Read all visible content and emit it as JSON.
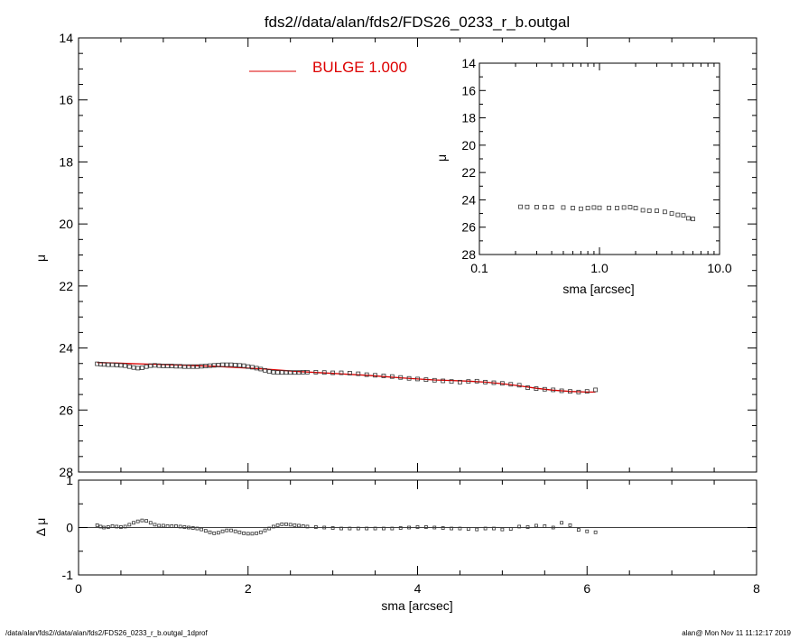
{
  "header": {
    "title": "fds2//data/alan/fds2/FDS26_0233_r_b.outgal"
  },
  "footer": {
    "left": "/data/alan/fds2//data/alan/fds2/FDS26_0233_r_b.outgal_1dprof",
    "right": "alan@  Mon Nov 11 11:12:17 2019"
  },
  "chart_data": [
    {
      "type": "scatter",
      "name": "main-profile",
      "xlabel": "",
      "ylabel": "μ",
      "xlim": [
        0,
        8
      ],
      "ylim": [
        28,
        14
      ],
      "y_inverted": true,
      "x_ticks": [
        0,
        2,
        4,
        6,
        8
      ],
      "y_ticks": [
        14,
        16,
        18,
        20,
        22,
        24,
        26,
        28
      ],
      "legend": {
        "label": "BULGE  1.000",
        "color": "#dd0000",
        "placement": "top"
      },
      "series": [
        {
          "kind": "data",
          "x": [
            0.22,
            0.26,
            0.3,
            0.35,
            0.4,
            0.45,
            0.5,
            0.55,
            0.6,
            0.65,
            0.7,
            0.75,
            0.8,
            0.85,
            0.9,
            0.95,
            1.0,
            1.05,
            1.1,
            1.15,
            1.2,
            1.25,
            1.3,
            1.35,
            1.4,
            1.45,
            1.5,
            1.55,
            1.6,
            1.65,
            1.7,
            1.75,
            1.8,
            1.85,
            1.9,
            1.95,
            2.0,
            2.05,
            2.1,
            2.15,
            2.2,
            2.25,
            2.3,
            2.35,
            2.4,
            2.45,
            2.5,
            2.55,
            2.6,
            2.65,
            2.7,
            2.8,
            2.9,
            3.0,
            3.1,
            3.2,
            3.3,
            3.4,
            3.5,
            3.6,
            3.7,
            3.8,
            3.9,
            4.0,
            4.1,
            4.2,
            4.3,
            4.4,
            4.5,
            4.6,
            4.7,
            4.8,
            4.9,
            5.0,
            5.1,
            5.2,
            5.3,
            5.4,
            5.5,
            5.6,
            5.7,
            5.8,
            5.9,
            6.0,
            6.1
          ],
          "y": [
            24.51,
            24.52,
            24.53,
            24.54,
            24.54,
            24.55,
            24.56,
            24.57,
            24.6,
            24.63,
            24.65,
            24.64,
            24.6,
            24.57,
            24.56,
            24.57,
            24.58,
            24.58,
            24.58,
            24.59,
            24.59,
            24.6,
            24.6,
            24.6,
            24.6,
            24.59,
            24.58,
            24.57,
            24.56,
            24.55,
            24.54,
            24.54,
            24.54,
            24.55,
            24.56,
            24.57,
            24.6,
            24.62,
            24.65,
            24.68,
            24.72,
            24.76,
            24.78,
            24.79,
            24.79,
            24.79,
            24.79,
            24.79,
            24.79,
            24.78,
            24.78,
            24.78,
            24.79,
            24.8,
            24.8,
            24.81,
            24.83,
            24.86,
            24.88,
            24.9,
            24.92,
            24.95,
            24.98,
            25.0,
            25.02,
            25.04,
            25.06,
            25.08,
            25.1,
            25.08,
            25.07,
            25.1,
            25.12,
            25.14,
            25.17,
            25.2,
            25.28,
            25.31,
            25.33,
            25.35,
            25.38,
            25.4,
            25.42,
            25.4,
            25.35
          ]
        },
        {
          "kind": "model",
          "name": "BULGE  1.000",
          "color": "#dd0000",
          "x": [
            0.22,
            0.4,
            0.6,
            0.8,
            1.0,
            1.2,
            1.4,
            1.6,
            1.8,
            2.0,
            2.2,
            2.4,
            2.6,
            2.8,
            3.0,
            3.2,
            3.4,
            3.6,
            3.8,
            4.0,
            4.2,
            4.4,
            4.6,
            4.8,
            5.0,
            5.2,
            5.4,
            5.6,
            5.8,
            6.0,
            6.1
          ],
          "y": [
            24.47,
            24.48,
            24.5,
            24.52,
            24.53,
            24.55,
            24.57,
            24.59,
            24.62,
            24.65,
            24.68,
            24.72,
            24.76,
            24.79,
            24.82,
            24.85,
            24.88,
            24.92,
            24.96,
            25.0,
            25.03,
            25.05,
            25.07,
            25.1,
            25.15,
            25.22,
            25.3,
            25.36,
            25.4,
            25.42,
            25.42
          ]
        }
      ]
    },
    {
      "type": "scatter",
      "name": "residual",
      "xlabel": "sma [arcsec]",
      "ylabel": "Δ μ",
      "xlim": [
        0,
        8
      ],
      "ylim": [
        -1,
        1
      ],
      "x_ticks": [
        0,
        2,
        4,
        6,
        8
      ],
      "y_ticks": [
        -1,
        0,
        1
      ],
      "zero_line": true,
      "series": [
        {
          "kind": "residual",
          "x": [
            0.22,
            0.26,
            0.3,
            0.35,
            0.4,
            0.45,
            0.5,
            0.55,
            0.6,
            0.65,
            0.7,
            0.75,
            0.8,
            0.85,
            0.9,
            0.95,
            1.0,
            1.05,
            1.1,
            1.15,
            1.2,
            1.25,
            1.3,
            1.35,
            1.4,
            1.45,
            1.5,
            1.55,
            1.6,
            1.65,
            1.7,
            1.75,
            1.8,
            1.85,
            1.9,
            1.95,
            2.0,
            2.05,
            2.1,
            2.15,
            2.2,
            2.25,
            2.3,
            2.35,
            2.4,
            2.45,
            2.5,
            2.55,
            2.6,
            2.65,
            2.7,
            2.8,
            2.9,
            3.0,
            3.1,
            3.2,
            3.3,
            3.4,
            3.5,
            3.6,
            3.7,
            3.8,
            3.9,
            4.0,
            4.1,
            4.2,
            4.3,
            4.4,
            4.5,
            4.6,
            4.7,
            4.8,
            4.9,
            5.0,
            5.1,
            5.2,
            5.3,
            5.4,
            5.5,
            5.6,
            5.7,
            5.8,
            5.9,
            6.0,
            6.1
          ],
          "y": [
            0.05,
            0.02,
            0.0,
            0.01,
            0.03,
            0.02,
            0.01,
            0.02,
            0.06,
            0.1,
            0.13,
            0.15,
            0.14,
            0.1,
            0.06,
            0.04,
            0.04,
            0.03,
            0.03,
            0.03,
            0.02,
            0.01,
            0.0,
            -0.01,
            -0.02,
            -0.04,
            -0.07,
            -0.1,
            -0.12,
            -0.11,
            -0.08,
            -0.06,
            -0.06,
            -0.08,
            -0.1,
            -0.12,
            -0.13,
            -0.13,
            -0.12,
            -0.1,
            -0.06,
            -0.02,
            0.02,
            0.05,
            0.07,
            0.07,
            0.06,
            0.05,
            0.04,
            0.03,
            0.02,
            0.01,
            0.0,
            -0.01,
            -0.02,
            -0.02,
            -0.02,
            -0.02,
            -0.02,
            -0.02,
            -0.02,
            -0.01,
            0.0,
            0.01,
            0.01,
            0.0,
            -0.01,
            -0.02,
            -0.02,
            -0.03,
            -0.04,
            -0.02,
            -0.02,
            -0.04,
            -0.03,
            0.02,
            0.01,
            0.04,
            0.03,
            0.0,
            0.1,
            0.05,
            -0.05,
            -0.08,
            -0.1
          ]
        }
      ]
    },
    {
      "type": "scatter",
      "name": "inset-log",
      "xlabel": "sma [arcsec]",
      "ylabel": "μ",
      "x_scale": "log",
      "xlim": [
        0.1,
        10.0
      ],
      "ylim": [
        28,
        14
      ],
      "y_inverted": true,
      "x_ticks": [
        0.1,
        1.0,
        10.0
      ],
      "x_tick_labels": [
        "0.1",
        "1.0",
        "10.0"
      ],
      "y_ticks": [
        14,
        16,
        18,
        20,
        22,
        24,
        26,
        28
      ],
      "series": [
        {
          "kind": "data",
          "x": [
            0.22,
            0.25,
            0.3,
            0.35,
            0.4,
            0.5,
            0.6,
            0.7,
            0.8,
            0.9,
            1.0,
            1.2,
            1.4,
            1.6,
            1.8,
            2.0,
            2.3,
            2.6,
            3.0,
            3.5,
            4.0,
            4.5,
            5.0,
            5.5,
            6.0
          ],
          "y": [
            24.51,
            24.52,
            24.53,
            24.54,
            24.54,
            24.56,
            24.6,
            24.65,
            24.6,
            24.56,
            24.58,
            24.59,
            24.6,
            24.56,
            24.54,
            24.6,
            24.76,
            24.79,
            24.8,
            24.88,
            25.0,
            25.1,
            25.14,
            25.35,
            25.4
          ]
        }
      ]
    }
  ]
}
